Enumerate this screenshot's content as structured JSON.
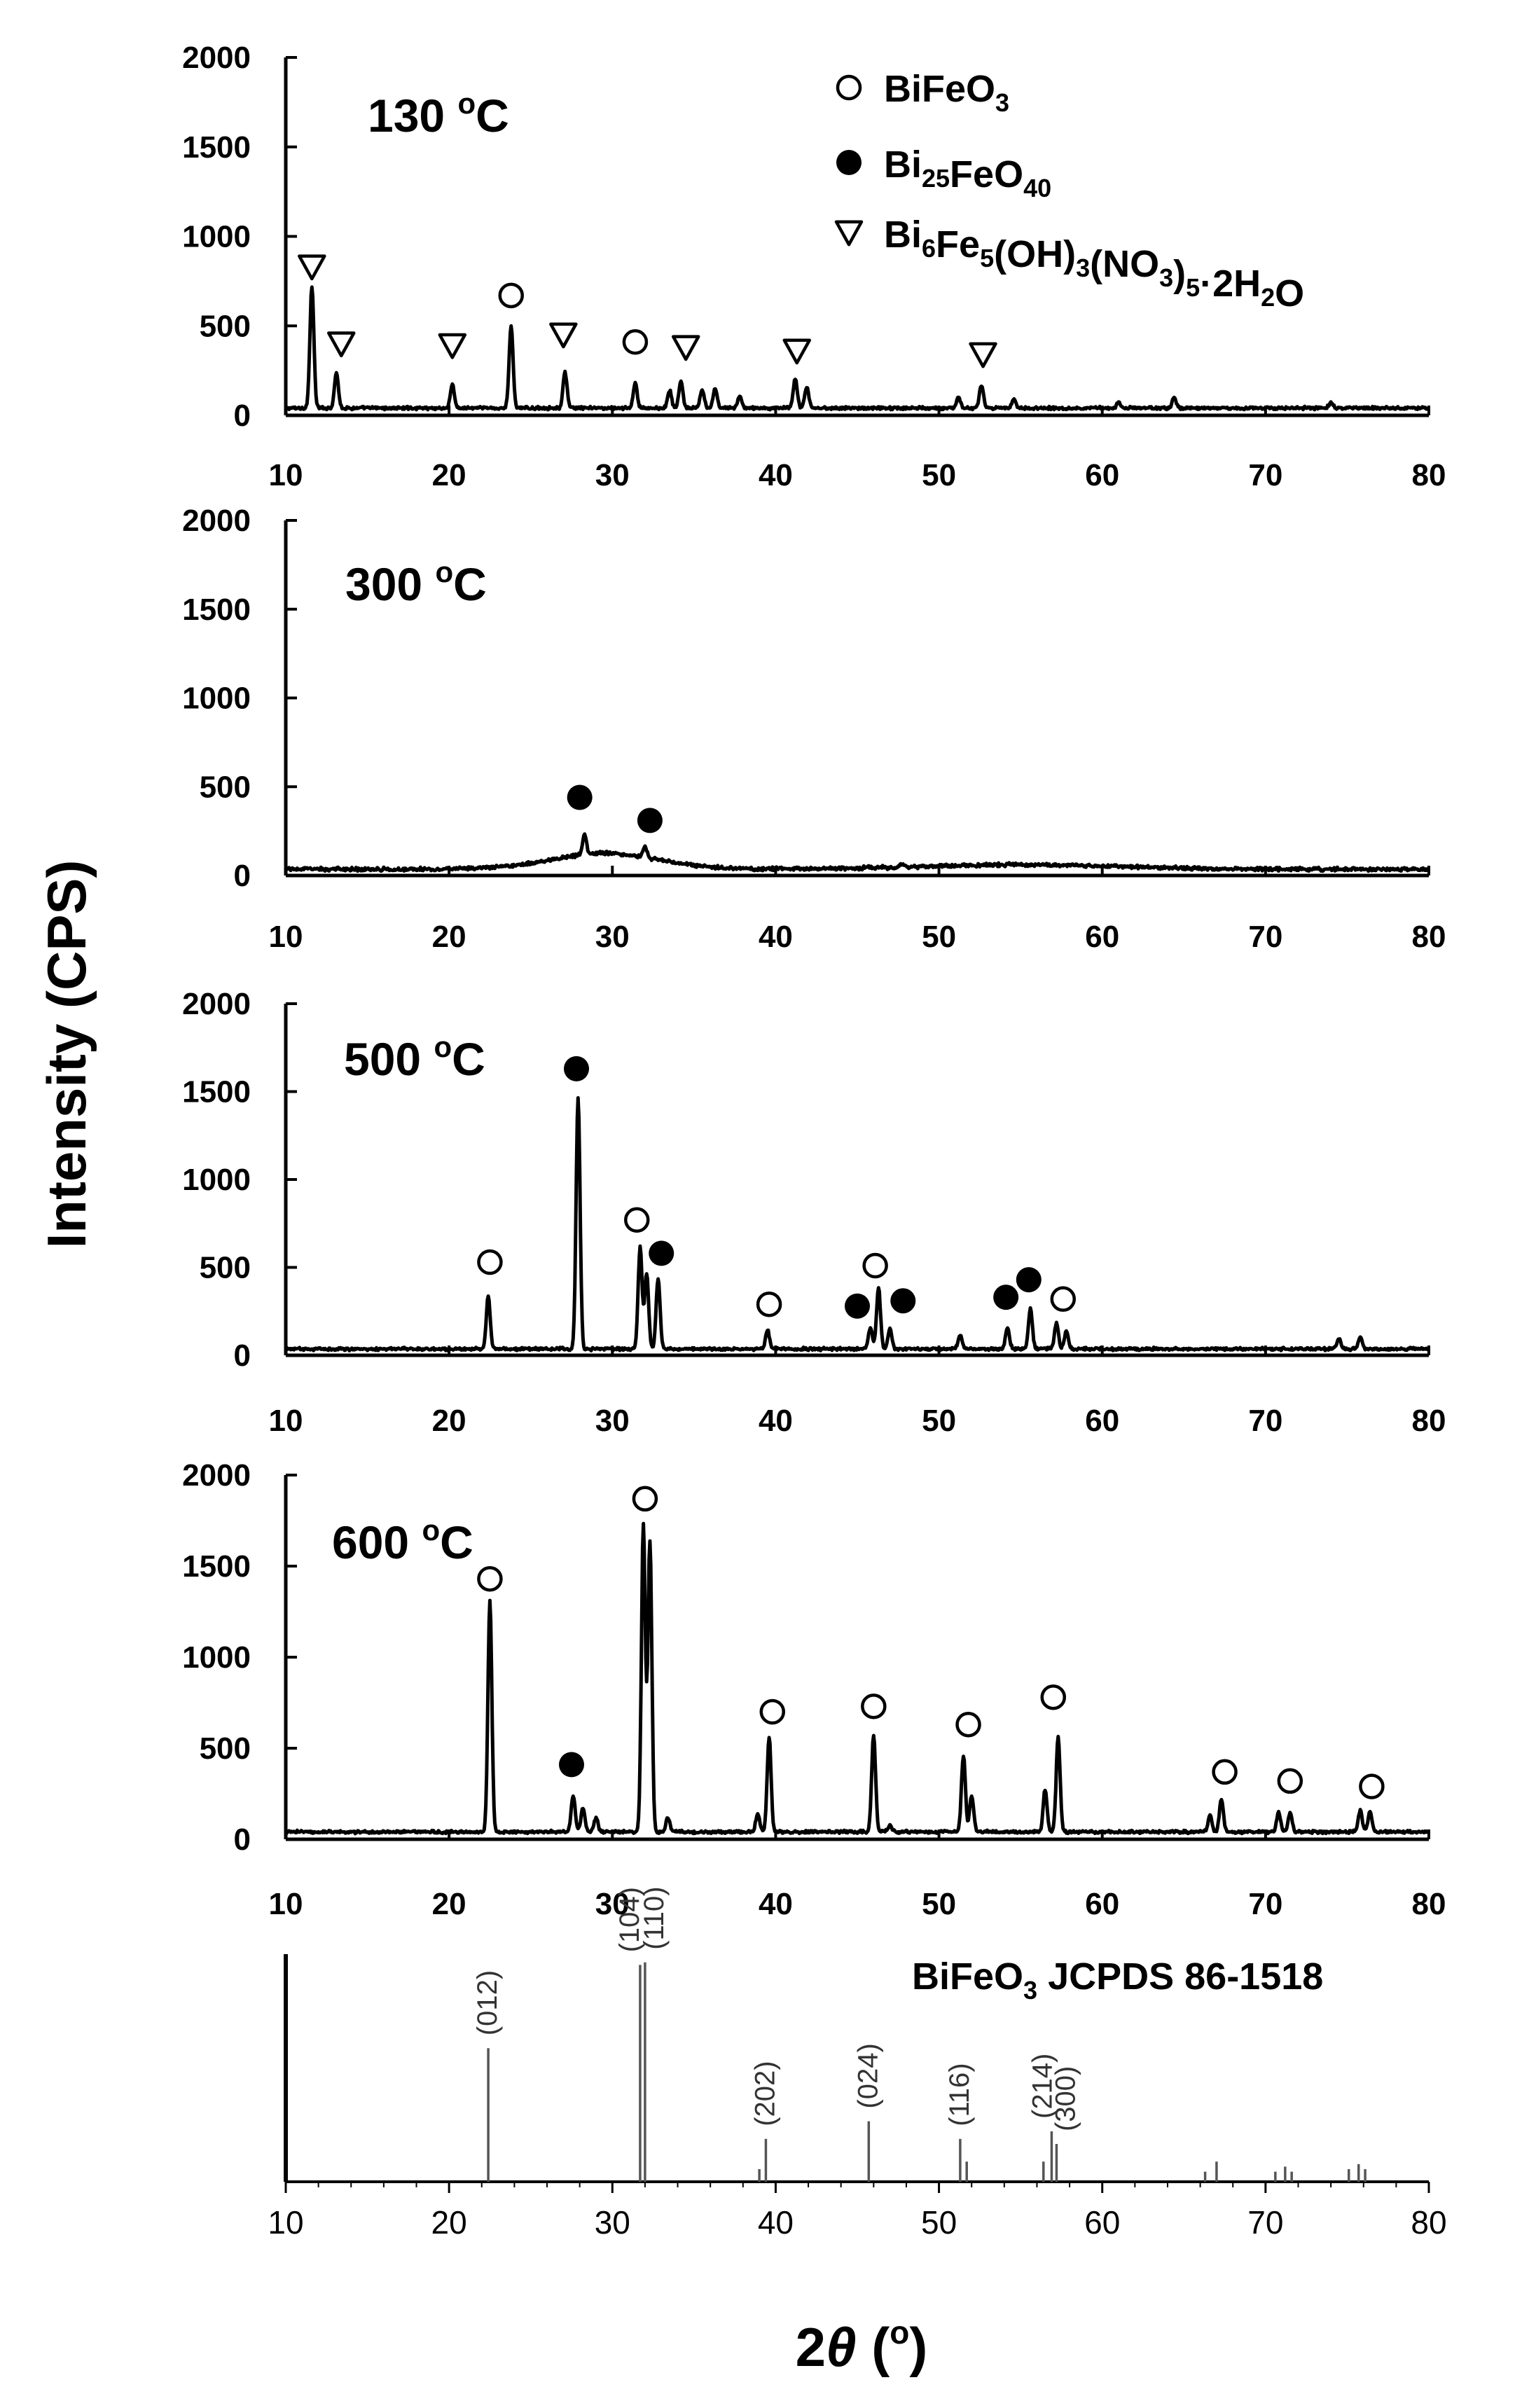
{
  "chart_data": {
    "type": "line",
    "ylabel": "Intensity (CPS)",
    "xlabel": {
      "main": "2",
      "theta": "θ",
      "unit": " (",
      "deg": "o",
      "close": ")"
    },
    "xlim": [
      10,
      80
    ],
    "ylim": [
      0,
      2000
    ],
    "x_ticks": [
      "10",
      "20",
      "30",
      "40",
      "50",
      "60",
      "70",
      "80"
    ],
    "y_ticks": [
      "0",
      "500",
      "1000",
      "1500",
      "2000"
    ],
    "legend": [
      {
        "symbol": "open-circle",
        "formula": [
          [
            "BiFeO",
            "n"
          ],
          [
            "3",
            "sub"
          ]
        ]
      },
      {
        "symbol": "filled-circle",
        "formula": [
          [
            "Bi",
            "n"
          ],
          [
            "25",
            "sub"
          ],
          [
            "FeO",
            "n"
          ],
          [
            "40",
            "sub"
          ]
        ]
      },
      {
        "symbol": "open-triangle",
        "formula": [
          [
            "Bi",
            "n"
          ],
          [
            "6",
            "sub"
          ],
          [
            "Fe",
            "n"
          ],
          [
            "5",
            "sub"
          ],
          [
            "(OH)",
            "n"
          ],
          [
            "3",
            "sub"
          ],
          [
            "(NO",
            "n"
          ],
          [
            "3",
            "sub"
          ],
          [
            ")",
            "n"
          ],
          [
            "5",
            "sub"
          ],
          [
            "·2H",
            "n"
          ],
          [
            "2",
            "sub"
          ],
          [
            "O",
            "n"
          ]
        ]
      }
    ],
    "panels": [
      {
        "id": "130",
        "label": {
          "value": "130 ",
          "sup": "o",
          "unit": "C"
        },
        "baseline": 25,
        "noise": 10,
        "peaks": [
          [
            11.6,
            680
          ],
          [
            13.1,
            200
          ],
          [
            20.2,
            130
          ],
          [
            23.8,
            460
          ],
          [
            27.1,
            200
          ],
          [
            31.4,
            140
          ],
          [
            33.5,
            100
          ],
          [
            34.2,
            150
          ],
          [
            35.5,
            100
          ],
          [
            36.3,
            110
          ],
          [
            37.8,
            70
          ],
          [
            41.2,
            160
          ],
          [
            41.9,
            120
          ],
          [
            51.2,
            60
          ],
          [
            52.6,
            130
          ],
          [
            54.6,
            50
          ],
          [
            61.0,
            30
          ],
          [
            64.4,
            60
          ],
          [
            74.0,
            30
          ]
        ],
        "broad": [],
        "markers": [
          {
            "symbol": "open-triangle",
            "x": 11.6,
            "y": 830
          },
          {
            "symbol": "open-triangle",
            "x": 13.4,
            "y": 400
          },
          {
            "symbol": "open-triangle",
            "x": 20.2,
            "y": 390
          },
          {
            "symbol": "open-circle",
            "x": 23.8,
            "y": 670
          },
          {
            "symbol": "open-triangle",
            "x": 27.0,
            "y": 450
          },
          {
            "symbol": "open-circle",
            "x": 31.4,
            "y": 410
          },
          {
            "symbol": "open-triangle",
            "x": 34.5,
            "y": 380
          },
          {
            "symbol": "open-triangle",
            "x": 41.3,
            "y": 360
          },
          {
            "symbol": "open-triangle",
            "x": 52.7,
            "y": 340
          }
        ]
      },
      {
        "id": "300",
        "label": {
          "value": "300 ",
          "sup": "o",
          "unit": "C"
        },
        "baseline": 20,
        "noise": 12,
        "peaks": [
          [
            28.3,
            110
          ],
          [
            32.0,
            60
          ],
          [
            47.8,
            20
          ]
        ],
        "broad": [
          [
            29.5,
            90,
            3.2
          ],
          [
            55.0,
            25,
            6.0
          ]
        ],
        "markers": [
          {
            "symbol": "filled-circle",
            "x": 28.0,
            "y": 440
          },
          {
            "symbol": "filled-circle",
            "x": 32.3,
            "y": 310
          }
        ]
      },
      {
        "id": "500",
        "label": {
          "value": "500 ",
          "sup": "o",
          "unit": "C"
        },
        "baseline": 20,
        "noise": 10,
        "peaks": [
          [
            22.4,
            300
          ],
          [
            27.9,
            1430
          ],
          [
            31.7,
            580
          ],
          [
            32.1,
            430
          ],
          [
            32.8,
            400
          ],
          [
            39.5,
            110
          ],
          [
            45.8,
            120
          ],
          [
            46.3,
            350
          ],
          [
            47.0,
            110
          ],
          [
            51.3,
            80
          ],
          [
            54.2,
            120
          ],
          [
            55.6,
            230
          ],
          [
            57.2,
            150
          ],
          [
            57.8,
            100
          ],
          [
            74.5,
            60
          ],
          [
            75.8,
            70
          ]
        ],
        "broad": [],
        "markers": [
          {
            "symbol": "open-circle",
            "x": 22.5,
            "y": 530
          },
          {
            "symbol": "filled-circle",
            "x": 27.8,
            "y": 1630
          },
          {
            "symbol": "open-circle",
            "x": 31.5,
            "y": 770
          },
          {
            "symbol": "filled-circle",
            "x": 33.0,
            "y": 580
          },
          {
            "symbol": "open-circle",
            "x": 39.6,
            "y": 290
          },
          {
            "symbol": "filled-circle",
            "x": 45.0,
            "y": 280
          },
          {
            "symbol": "open-circle",
            "x": 46.1,
            "y": 510
          },
          {
            "symbol": "filled-circle",
            "x": 47.8,
            "y": 310
          },
          {
            "symbol": "filled-circle",
            "x": 54.1,
            "y": 330
          },
          {
            "symbol": "filled-circle",
            "x": 55.5,
            "y": 430
          },
          {
            "symbol": "open-circle",
            "x": 57.6,
            "y": 320
          }
        ]
      },
      {
        "id": "600",
        "label": {
          "value": "600 ",
          "sup": "o",
          "unit": "C"
        },
        "baseline": 25,
        "noise": 10,
        "peaks": [
          [
            22.5,
            1270
          ],
          [
            27.6,
            200
          ],
          [
            28.2,
            130
          ],
          [
            29.0,
            80
          ],
          [
            31.9,
            1690
          ],
          [
            32.3,
            1600
          ],
          [
            33.4,
            80
          ],
          [
            38.9,
            100
          ],
          [
            39.6,
            520
          ],
          [
            46.0,
            530
          ],
          [
            47.0,
            40
          ],
          [
            51.5,
            420
          ],
          [
            52.0,
            200
          ],
          [
            56.5,
            230
          ],
          [
            57.3,
            520
          ],
          [
            66.6,
            90
          ],
          [
            67.3,
            180
          ],
          [
            70.8,
            110
          ],
          [
            71.5,
            100
          ],
          [
            75.8,
            120
          ],
          [
            76.4,
            110
          ]
        ],
        "broad": [],
        "markers": [
          {
            "symbol": "open-circle",
            "x": 22.5,
            "y": 1430
          },
          {
            "symbol": "filled-circle",
            "x": 27.5,
            "y": 410
          },
          {
            "symbol": "open-circle",
            "x": 32.0,
            "y": 1870
          },
          {
            "symbol": "open-circle",
            "x": 39.8,
            "y": 700
          },
          {
            "symbol": "open-circle",
            "x": 46.0,
            "y": 730
          },
          {
            "symbol": "open-circle",
            "x": 51.8,
            "y": 630
          },
          {
            "symbol": "open-circle",
            "x": 57.0,
            "y": 780
          },
          {
            "symbol": "open-circle",
            "x": 67.5,
            "y": 370
          },
          {
            "symbol": "open-circle",
            "x": 71.5,
            "y": 320
          },
          {
            "symbol": "open-circle",
            "x": 76.5,
            "y": 290
          }
        ]
      }
    ],
    "reference": {
      "title": {
        "a": "BiFeO",
        "sub": "3",
        "b": " JCPDS 86-1518"
      },
      "lines": [
        {
          "x": 22.4,
          "h": 0.53,
          "hkl": "(012)"
        },
        {
          "x": 31.7,
          "h": 0.86,
          "hkl": "(104)"
        },
        {
          "x": 32.0,
          "h": 0.87,
          "hkl": "(110)"
        },
        {
          "x": 39.0,
          "h": 0.05,
          "hkl": ""
        },
        {
          "x": 39.4,
          "h": 0.17,
          "hkl": "(202)"
        },
        {
          "x": 45.7,
          "h": 0.24,
          "hkl": "(024)"
        },
        {
          "x": 51.3,
          "h": 0.17,
          "hkl": "(116)"
        },
        {
          "x": 51.7,
          "h": 0.08,
          "hkl": ""
        },
        {
          "x": 56.4,
          "h": 0.08,
          "hkl": ""
        },
        {
          "x": 56.9,
          "h": 0.2,
          "hkl": "(214)"
        },
        {
          "x": 57.2,
          "h": 0.15,
          "hkl": "(300)"
        },
        {
          "x": 66.3,
          "h": 0.04,
          "hkl": ""
        },
        {
          "x": 67.0,
          "h": 0.08,
          "hkl": ""
        },
        {
          "x": 70.6,
          "h": 0.04,
          "hkl": ""
        },
        {
          "x": 71.2,
          "h": 0.06,
          "hkl": ""
        },
        {
          "x": 71.6,
          "h": 0.04,
          "hkl": ""
        },
        {
          "x": 75.1,
          "h": 0.05,
          "hkl": ""
        },
        {
          "x": 75.7,
          "h": 0.07,
          "hkl": ""
        },
        {
          "x": 76.1,
          "h": 0.05,
          "hkl": ""
        }
      ]
    }
  }
}
